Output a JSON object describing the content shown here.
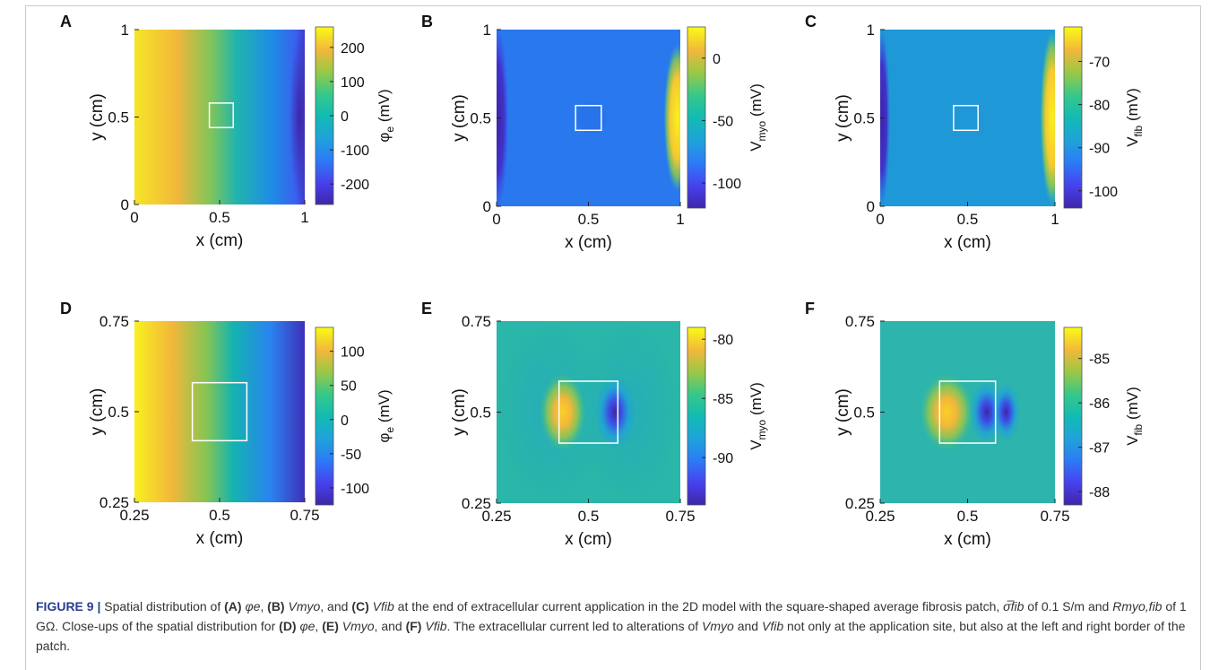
{
  "panels": [
    {
      "letter": "A",
      "xlabel": "x (cm)",
      "ylabel": "y (cm)",
      "xticks": [
        "0",
        "0.5",
        "1"
      ],
      "yticks": [
        "1",
        "0.5",
        "0"
      ],
      "cbar_label": "φe (mV)",
      "cbar_ticks": [
        "200",
        "100",
        "0",
        "-100",
        "-200"
      ],
      "cbar_range": [
        -260,
        260
      ]
    },
    {
      "letter": "B",
      "xlabel": "x (cm)",
      "ylabel": "y (cm)",
      "xticks": [
        "0",
        "0.5",
        "1"
      ],
      "yticks": [
        "1",
        "0.5",
        "0"
      ],
      "cbar_label": "Vmyo (mV)",
      "cbar_ticks": [
        "0",
        "-50",
        "-100"
      ],
      "cbar_range": [
        -120,
        25
      ]
    },
    {
      "letter": "C",
      "xlabel": "x (cm)",
      "ylabel": "y (cm)",
      "xticks": [
        "0",
        "0.5",
        "1"
      ],
      "yticks": [
        "1",
        "0.5",
        "0"
      ],
      "cbar_label": "Vfib (mV)",
      "cbar_ticks": [
        "-70",
        "-80",
        "-90",
        "-100"
      ],
      "cbar_range": [
        -104,
        -62
      ]
    },
    {
      "letter": "D",
      "xlabel": "x (cm)",
      "ylabel": "y (cm)",
      "xticks": [
        "0.25",
        "0.5",
        "0.75"
      ],
      "yticks": [
        "0.75",
        "0.5",
        "0.25"
      ],
      "cbar_label": "φe (mV)",
      "cbar_ticks": [
        "100",
        "50",
        "0",
        "-50",
        "-100"
      ],
      "cbar_range": [
        -125,
        135
      ]
    },
    {
      "letter": "E",
      "xlabel": "x (cm)",
      "ylabel": "y (cm)",
      "xticks": [
        "0.25",
        "0.5",
        "0.75"
      ],
      "yticks": [
        "0.75",
        "0.5",
        "0.25"
      ],
      "cbar_label": "Vmyo (mV)",
      "cbar_ticks": [
        "-80",
        "-85",
        "-90"
      ],
      "cbar_range": [
        -94,
        -79
      ]
    },
    {
      "letter": "F",
      "xlabel": "x (cm)",
      "ylabel": "y (cm)",
      "xticks": [
        "0.25",
        "0.5",
        "0.75"
      ],
      "yticks": [
        "0.75",
        "0.5",
        "0.25"
      ],
      "cbar_label": "Vfib (mV)",
      "cbar_ticks": [
        "-85",
        "-86",
        "-87",
        "-88"
      ],
      "cbar_range": [
        -88.3,
        -84.3
      ]
    }
  ],
  "caption": {
    "label": "FIGURE 9 |",
    "p1": " Spatial distribution of ",
    "a": "(A)",
    "phi_e": "φe",
    "comma": ",",
    "b": "(B)",
    "vmyo": "Vmyo",
    "and": ", and ",
    "c": "(C)",
    "vfib": "Vfib",
    "p2": " at the end of extracellular current application in the 2D model with the square-shaped average fibrosis patch, ",
    "sigma": "σ̅fib",
    "p3": " of 0.1 S/m and ",
    "rmyo": "Rmyo,fib",
    "p4": " of 1 GΩ. Close-ups of the spatial distribution for ",
    "d": "(D)",
    "e": "(E)",
    "f": "(F)",
    "p5": ". The extracellular current led to alterations of ",
    "p6": " and ",
    "p7": " not only at the application site, but also at the left and right border of the patch."
  }
}
